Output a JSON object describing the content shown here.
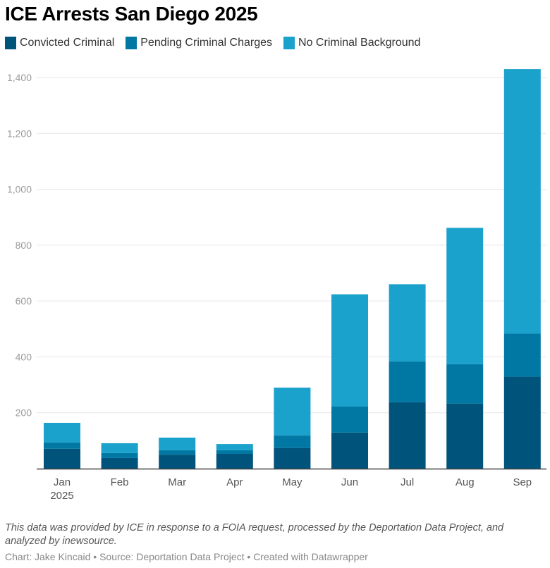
{
  "chart_data": {
    "type": "bar",
    "stacked": true,
    "title": "ICE Arrests San Diego 2025",
    "xlabel": "",
    "ylabel": "",
    "categories": [
      "Jan",
      "Feb",
      "Mar",
      "Apr",
      "May",
      "Jun",
      "Jul",
      "Aug",
      "Sep"
    ],
    "category_sublabels": [
      "2025",
      "",
      "",
      "",
      "",
      "",
      "",
      "",
      ""
    ],
    "series": [
      {
        "name": "Convicted Criminal",
        "color": "#00537a",
        "values": [
          71,
          38,
          50,
          53,
          74,
          129,
          238,
          233,
          329
        ]
      },
      {
        "name": "Pending Criminal Charges",
        "color": "#0078a3",
        "values": [
          23,
          18,
          16,
          13,
          45,
          93,
          146,
          141,
          154
        ]
      },
      {
        "name": "No Criminal Background",
        "color": "#1aa2cc",
        "values": [
          70,
          35,
          45,
          22,
          171,
          402,
          276,
          488,
          947
        ]
      }
    ],
    "ylim": [
      0,
      1430
    ],
    "yticks": [
      200,
      400,
      600,
      800,
      1000,
      1200,
      1400
    ],
    "ytick_labels": [
      "200",
      "400",
      "600",
      "800",
      "1,000",
      "1,200",
      "1,400"
    ],
    "grid": true,
    "legend_position": "top-left"
  },
  "notes": "This data was provided by ICE in response to a FOIA request, processed by the Deportation Data Project, and analyzed by inewsource.",
  "byline": "Chart: Jake Kincaid • Source: Deportation Data Project • Created with Datawrapper"
}
